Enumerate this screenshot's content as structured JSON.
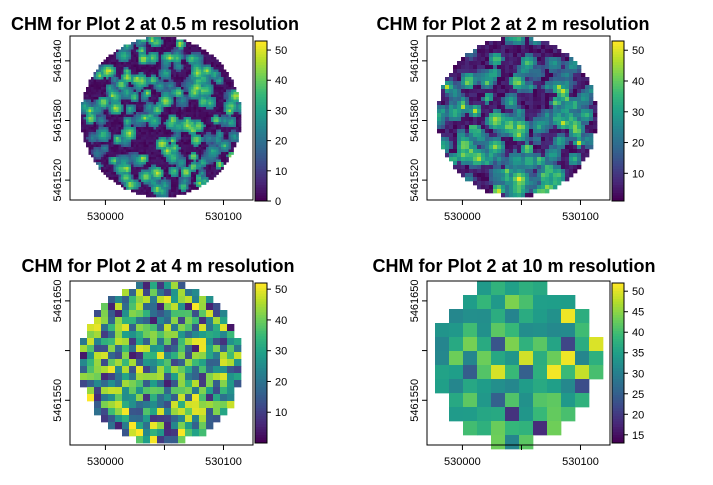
{
  "figure": {
    "background": "#ffffff"
  },
  "chart_data": [
    {
      "type": "heatmap",
      "title": "CHM for Plot 2 at 0.5 m resolution",
      "xlabel": "",
      "ylabel": "",
      "x_ticks": [
        "530000",
        "530100"
      ],
      "x_tick_values": [
        530000,
        530100
      ],
      "y_ticks": [
        "5461520",
        "5461580",
        "5461640"
      ],
      "y_tick_values": [
        5461520,
        5461580,
        5461640
      ],
      "xlim": [
        529970,
        530125
      ],
      "ylim": [
        5461500,
        5461665
      ],
      "colorbar": {
        "min": 0,
        "max": 53,
        "ticks": [
          "0",
          "10",
          "20",
          "30",
          "40",
          "50"
        ],
        "tick_values": [
          0,
          10,
          20,
          30,
          40,
          50
        ]
      },
      "colormap": "viridis",
      "resolution_m": 0.5,
      "value_range": [
        0,
        53
      ],
      "pattern": "tree crowns: discrete bright blobs on low background"
    },
    {
      "type": "heatmap",
      "title": "CHM for Plot 2 at 2 m resolution",
      "xlabel": "",
      "ylabel": "",
      "x_ticks": [
        "530000",
        "530100"
      ],
      "x_tick_values": [
        530000,
        530100
      ],
      "y_ticks": [
        "5461520",
        "5461580",
        "5461640"
      ],
      "y_tick_values": [
        5461520,
        5461580,
        5461640
      ],
      "xlim": [
        529970,
        530125
      ],
      "ylim": [
        5461500,
        5461665
      ],
      "colorbar": {
        "min": 1,
        "max": 53,
        "ticks": [
          "10",
          "20",
          "30",
          "40",
          "50"
        ],
        "tick_values": [
          10,
          20,
          30,
          40,
          50
        ]
      },
      "colormap": "viridis",
      "resolution_m": 2,
      "value_range": [
        1,
        53
      ],
      "pattern": "tree crowns, coarser"
    },
    {
      "type": "heatmap",
      "title": "CHM for Plot 2 at 4 m resolution",
      "xlabel": "",
      "ylabel": "",
      "x_ticks": [
        "530000",
        "530100"
      ],
      "x_tick_values": [
        530000,
        530100
      ],
      "y_ticks": [
        "5461550",
        "5461650"
      ],
      "y_tick_values": [
        5461550,
        5461650
      ],
      "xlim": [
        529970,
        530125
      ],
      "ylim": [
        5461505,
        5461670
      ],
      "colorbar": {
        "min": 0,
        "max": 52,
        "ticks": [
          "10",
          "20",
          "30",
          "40",
          "50"
        ],
        "tick_values": [
          10,
          20,
          30,
          40,
          50
        ]
      },
      "colormap": "viridis",
      "resolution_m": 4,
      "value_range": [
        0,
        52
      ],
      "pattern": "mixed mid-high values"
    },
    {
      "type": "heatmap",
      "title": "CHM for Plot 2 at 10 m resolution",
      "xlabel": "",
      "ylabel": "",
      "x_ticks": [
        "530000",
        "530100"
      ],
      "x_tick_values": [
        530000,
        530100
      ],
      "y_ticks": [
        "5461550",
        "5461650"
      ],
      "y_tick_values": [
        5461550,
        5461650
      ],
      "xlim": [
        529970,
        530125
      ],
      "ylim": [
        5461505,
        5461670
      ],
      "colorbar": {
        "min": 13,
        "max": 52,
        "ticks": [
          "15",
          "20",
          "25",
          "30",
          "35",
          "40",
          "45",
          "50"
        ],
        "tick_values": [
          15,
          20,
          25,
          30,
          35,
          40,
          45,
          50
        ]
      },
      "colormap": "viridis",
      "resolution_m": 10,
      "value_range": [
        13,
        52
      ],
      "pattern": "blocky, mostly mid-high values"
    }
  ]
}
